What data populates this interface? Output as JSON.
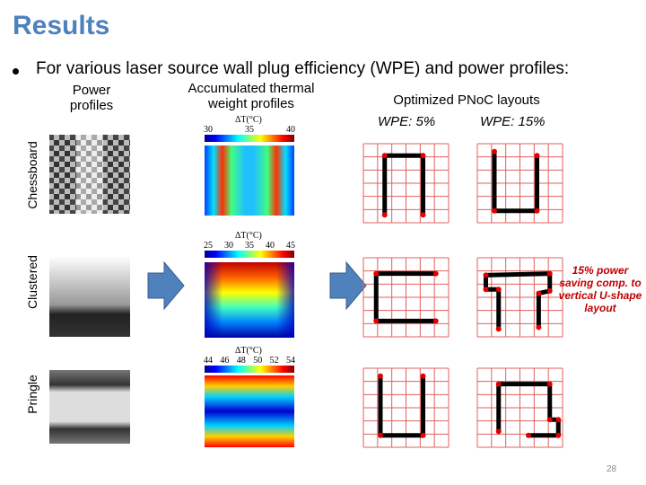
{
  "title": "Results",
  "bullet": "For various laser source wall plug efficiency (WPE) and power profiles:",
  "columns": {
    "power": "Power profiles",
    "thermal": "Accumulated thermal weight profiles",
    "layouts": "Optimized PNoC layouts",
    "wpe_low": "WPE: 5%",
    "wpe_high": "WPE: 15%"
  },
  "rows": [
    "Chessboard",
    "Clustered",
    "Pringle"
  ],
  "colorbars": [
    {
      "label": "ΔT(°C)",
      "ticks": [
        30,
        35,
        40
      ]
    },
    {
      "label": "ΔT(°C)",
      "ticks": [
        25,
        30,
        35,
        40,
        45
      ]
    },
    {
      "label": "ΔT(°C)",
      "ticks": [
        44,
        46,
        48,
        50,
        52,
        54
      ]
    }
  ],
  "annotation": "15% power saving comp. to vertical U-shape layout",
  "page_number": "28"
}
